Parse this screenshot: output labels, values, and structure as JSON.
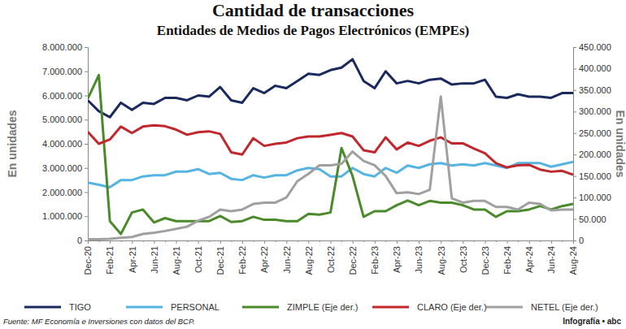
{
  "chart_data": {
    "type": "line",
    "title": "Cantidad de transacciones",
    "subtitle": "Entidades de Medios de Pagos Electrónicos (EMPEs)",
    "y_label": "En unidades",
    "y2_label": "En unidades",
    "source": "Fuente: MF Economía e Inversiones con datos del BCP.",
    "credit": "Infografía • abc",
    "legend": "bottom",
    "grid": false,
    "categories": [
      "Dec-20",
      null,
      "Feb-21",
      null,
      "Apr-21",
      null,
      "Jun-21",
      null,
      "Aug-21",
      null,
      "Oct-21",
      null,
      "Dec-21",
      null,
      "Feb-22",
      null,
      "Apr-22",
      null,
      "Jun-22",
      null,
      "Aug-22",
      null,
      "Oct-22",
      null,
      "Dec-22",
      null,
      "Feb-23",
      null,
      "Apr-23",
      null,
      "Jun-23",
      null,
      "Aug-23",
      null,
      "Oct-23",
      null,
      "Dec-23",
      null,
      "Feb-24",
      null,
      "Apr-24",
      null,
      "Jun-24",
      null,
      "Aug-24"
    ],
    "ylim": [
      0,
      8000000
    ],
    "yticks": [
      0,
      {
        "value": 1000000,
        "label": "1.000.000"
      },
      {
        "value": 2000000,
        "label": "2.000.000"
      },
      {
        "value": 3000000,
        "label": "3.000.000"
      },
      {
        "value": 4000000,
        "label": "4.000.000"
      },
      {
        "value": 5000000,
        "label": "5.000.000"
      },
      {
        "value": 6000000,
        "label": "6.000.000"
      },
      {
        "value": 7000000,
        "label": "7.000.000"
      },
      {
        "value": 8000000,
        "label": "8.000.000"
      }
    ],
    "y2lim": [
      0,
      450000
    ],
    "y2ticks": [
      0,
      {
        "value": 50000,
        "label": "50.000"
      },
      {
        "value": 100000,
        "label": "100.000"
      },
      {
        "value": 150000,
        "label": "150.000"
      },
      {
        "value": 200000,
        "label": "200.000"
      },
      {
        "value": 250000,
        "label": "250.000"
      },
      {
        "value": 300000,
        "label": "300.000"
      },
      {
        "value": 350000,
        "label": "350.000"
      },
      {
        "value": 400000,
        "label": "400.000"
      },
      {
        "value": 450000,
        "label": "450.000"
      }
    ],
    "series": [
      {
        "name": "TIGO",
        "color": "#1b2a5e",
        "values": [
          5800000,
          5350000,
          5100000,
          5700000,
          5400000,
          5700000,
          5650000,
          5900000,
          5900000,
          5800000,
          6000000,
          5950000,
          6350000,
          5800000,
          5700000,
          6300000,
          6100000,
          6400000,
          6300000,
          6600000,
          6900000,
          6850000,
          7050000,
          7150000,
          7500000,
          6600000,
          6300000,
          7000000,
          6500000,
          6600000,
          6500000,
          6650000,
          6700000,
          6450000,
          6500000,
          6500000,
          6650000,
          5950000,
          5900000,
          6050000,
          5950000,
          5950000,
          5900000,
          6100000,
          6100000
        ]
      },
      {
        "name": "PERSONAL",
        "color": "#56b4e3",
        "values": [
          2400000,
          2300000,
          2200000,
          2500000,
          2500000,
          2650000,
          2700000,
          2700000,
          2850000,
          2850000,
          2950000,
          2750000,
          2800000,
          2550000,
          2500000,
          2700000,
          2600000,
          2700000,
          2700000,
          2900000,
          3000000,
          2950000,
          2650000,
          2650000,
          3000000,
          2750000,
          2650000,
          3000000,
          2800000,
          3100000,
          3000000,
          3150000,
          3200000,
          3100000,
          3150000,
          3100000,
          3200000,
          3100000,
          3000000,
          3200000,
          3200000,
          3200000,
          3050000,
          3150000,
          3250000
        ]
      },
      {
        "name": "ZIMPLE (Eje der.)",
        "color": "#4a8a2a",
        "axis": "y2",
        "values": [
          330000,
          385000,
          45000,
          15000,
          65000,
          72000,
          42000,
          52000,
          45000,
          45000,
          45000,
          45000,
          57000,
          43000,
          45000,
          55000,
          48000,
          48000,
          45000,
          45000,
          62000,
          60000,
          65000,
          215000,
          150000,
          55000,
          68000,
          68000,
          82000,
          93000,
          82000,
          92000,
          88000,
          88000,
          82000,
          72000,
          72000,
          55000,
          68000,
          68000,
          72000,
          80000,
          72000,
          80000,
          85000
        ]
      },
      {
        "name": "CLARO (Eje der.)",
        "color": "#c0282d",
        "axis": "y2",
        "values": [
          253000,
          225000,
          235000,
          265000,
          250000,
          265000,
          268000,
          266000,
          258000,
          246000,
          252000,
          254000,
          248000,
          205000,
          200000,
          238000,
          220000,
          225000,
          228000,
          238000,
          242000,
          242000,
          246000,
          250000,
          242000,
          210000,
          205000,
          240000,
          212000,
          228000,
          220000,
          232000,
          240000,
          226000,
          226000,
          214000,
          203000,
          180000,
          170000,
          175000,
          176000,
          165000,
          160000,
          162000,
          153000
        ]
      },
      {
        "name": "NETEL (Eje der.)",
        "color": "#a0a0a0",
        "axis": "y2",
        "values": [
          3000,
          3000,
          4000,
          6000,
          8000,
          15000,
          18000,
          22000,
          27000,
          32000,
          46000,
          55000,
          72000,
          68000,
          72000,
          85000,
          88000,
          88000,
          100000,
          138000,
          155000,
          175000,
          175000,
          178000,
          207000,
          185000,
          175000,
          150000,
          110000,
          112000,
          108000,
          118000,
          335000,
          98000,
          88000,
          92000,
          92000,
          78000,
          78000,
          72000,
          88000,
          85000,
          70000,
          72000,
          72000
        ]
      }
    ]
  }
}
